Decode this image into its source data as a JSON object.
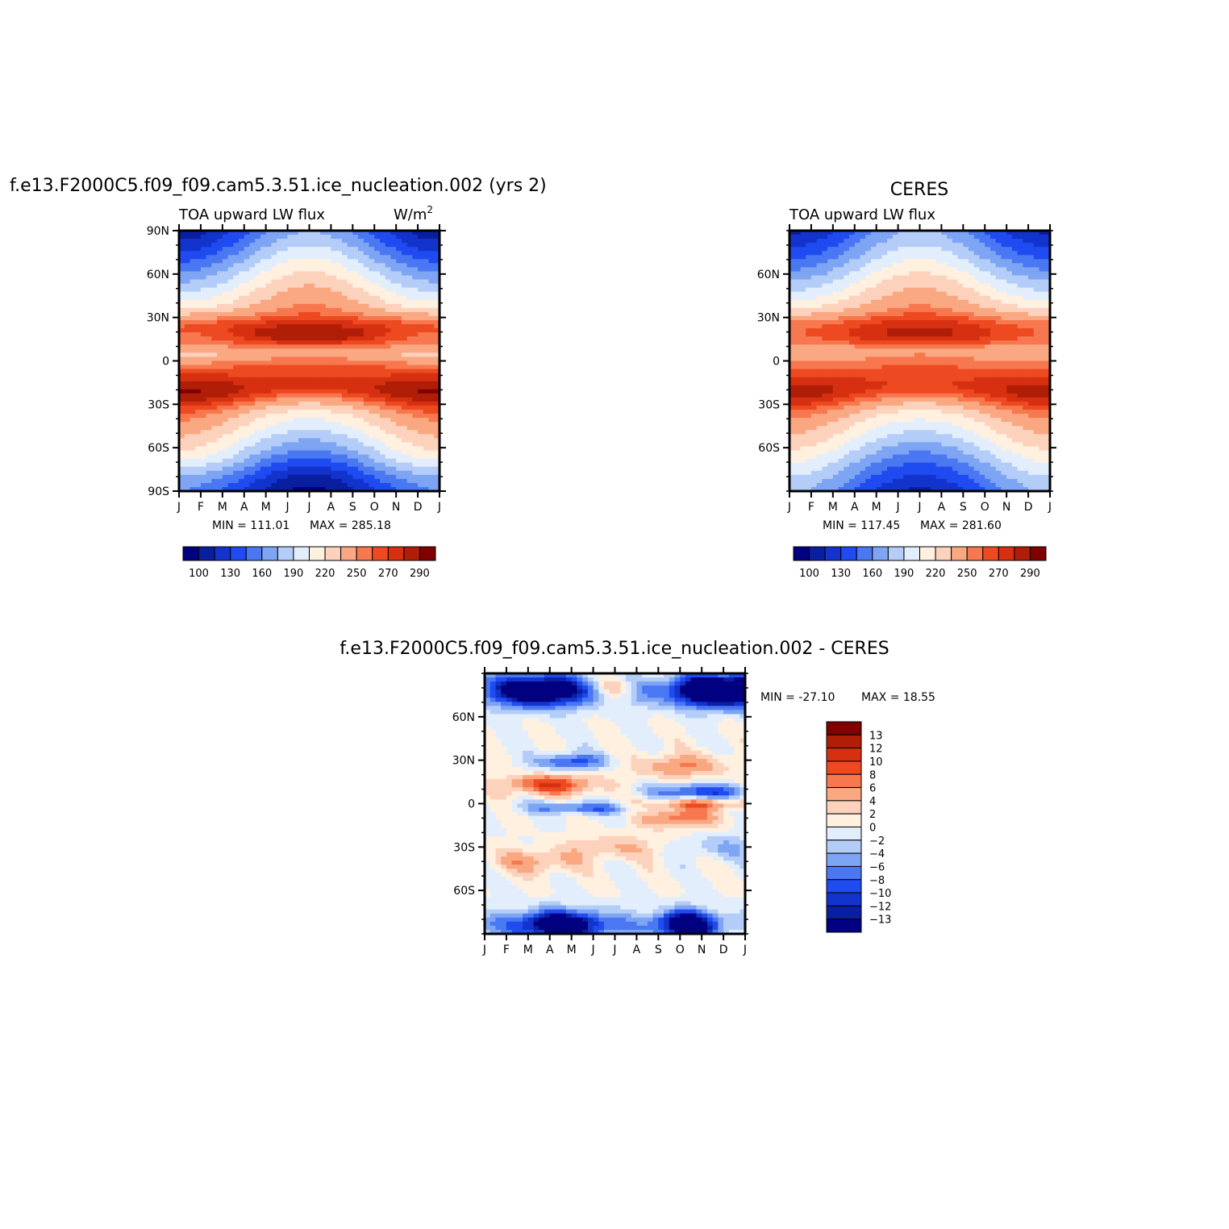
{
  "colors": {
    "abs_palette": [
      "#000080",
      "#0a1fa0",
      "#1334cc",
      "#1f4bf0",
      "#4a78f2",
      "#7ea4f4",
      "#b4cdf8",
      "#e2eefc",
      "#fff0e0",
      "#fcd2bc",
      "#f9a882",
      "#f7784f",
      "#ee4a22",
      "#d73010",
      "#b01e08",
      "#800000"
    ],
    "diff_palette": [
      "#000080",
      "#0a1fa0",
      "#1334cc",
      "#1f4bf0",
      "#4a78f2",
      "#7ea4f4",
      "#b4cdf8",
      "#e2eefc",
      "#fff0e0",
      "#fcd2bc",
      "#f9a882",
      "#f7784f",
      "#ee4a22",
      "#d73010",
      "#b01e08",
      "#800000"
    ]
  },
  "chart_data": [
    {
      "id": "model",
      "type": "heatmap",
      "title": "f.e13.F2000C5.f09_f09.cam5.3.51.ice_nucleation.002 (yrs 2)",
      "subtitle_left": "TOA upward LW flux",
      "subtitle_right": "W/m",
      "subtitle_right_sup": "2",
      "x_ticks": [
        "J",
        "F",
        "M",
        "A",
        "M",
        "J",
        "J",
        "A",
        "S",
        "O",
        "N",
        "D",
        "J"
      ],
      "y_ticks": [
        "90N",
        "60N",
        "30N",
        "0",
        "30S",
        "60S",
        "90S"
      ],
      "min_label": "MIN = 111.01",
      "max_label": "MAX = 285.18",
      "colorbar_labels": [
        "100",
        "130",
        "160",
        "190",
        "220",
        "250",
        "270",
        "290"
      ],
      "levels": [
        100,
        115,
        130,
        145,
        160,
        175,
        190,
        205,
        220,
        235,
        250,
        260,
        270,
        280,
        290
      ],
      "ylim": [
        -90,
        90
      ]
    },
    {
      "id": "ceres",
      "type": "heatmap",
      "title": "CERES",
      "subtitle_left": "TOA upward LW flux",
      "x_ticks": [
        "J",
        "F",
        "M",
        "A",
        "M",
        "J",
        "J",
        "A",
        "S",
        "O",
        "N",
        "D",
        "J"
      ],
      "y_ticks": [
        "60N",
        "30N",
        "0",
        "30S",
        "60S"
      ],
      "min_label": "MIN = 117.45",
      "max_label": "MAX = 281.60",
      "colorbar_labels": [
        "100",
        "130",
        "160",
        "190",
        "220",
        "250",
        "270",
        "290"
      ],
      "levels": [
        100,
        115,
        130,
        145,
        160,
        175,
        190,
        205,
        220,
        235,
        250,
        260,
        270,
        280,
        290
      ],
      "ylim": [
        -90,
        90
      ]
    },
    {
      "id": "diff",
      "type": "heatmap",
      "title": "f.e13.F2000C5.f09_f09.cam5.3.51.ice_nucleation.002 - CERES",
      "x_ticks": [
        "J",
        "F",
        "M",
        "A",
        "M",
        "J",
        "J",
        "A",
        "S",
        "O",
        "N",
        "D",
        "J"
      ],
      "y_ticks": [
        "60N",
        "30N",
        "0",
        "30S",
        "60S"
      ],
      "min_label": "MIN = -27.10",
      "max_label": "MAX = 18.55",
      "colorbar_labels": [
        "13",
        "12",
        "10",
        "8",
        "6",
        "4",
        "2",
        "0",
        "-2",
        "-4",
        "-6",
        "-8",
        "-10",
        "-12",
        "-13"
      ],
      "levels": [
        -13,
        -12,
        -10,
        -8,
        -6,
        -4,
        -2,
        0,
        2,
        4,
        6,
        8,
        10,
        12,
        13
      ],
      "ylim": [
        -90,
        90
      ]
    }
  ]
}
